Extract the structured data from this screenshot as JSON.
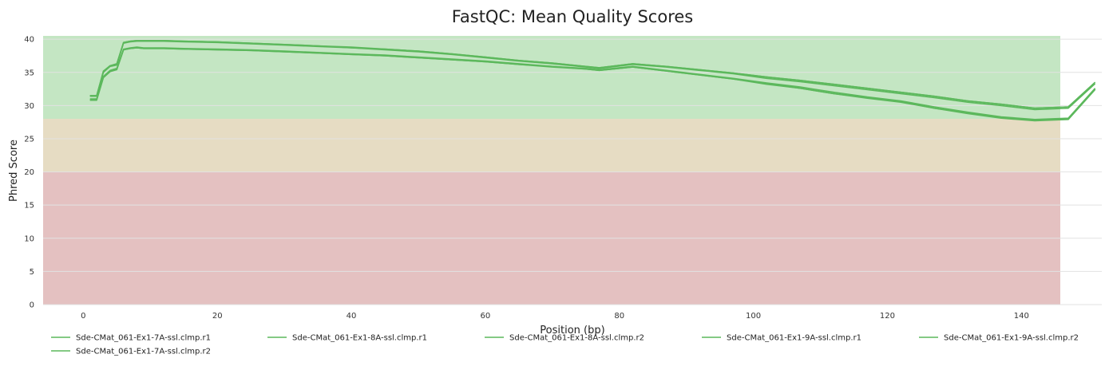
{
  "chart_data": {
    "type": "line",
    "title": "FastQC: Mean Quality Scores",
    "xlabel": "Position (bp)",
    "ylabel": "Phred Score",
    "xlim": [
      -6,
      152
    ],
    "ylim": [
      0,
      40.5
    ],
    "xticks": [
      0,
      20,
      40,
      60,
      80,
      100,
      120,
      140
    ],
    "yticks": [
      0,
      5,
      10,
      15,
      20,
      25,
      30,
      35,
      40
    ],
    "grid": true,
    "legend_position": "bottom",
    "line_color": "#5cb85c",
    "bands": [
      {
        "from": 28,
        "to": 40.5,
        "color": "#c4e6c3"
      },
      {
        "from": 20,
        "to": 28,
        "color": "#e6dcc3"
      },
      {
        "from": 0,
        "to": 20,
        "color": "#e4c1c1"
      }
    ],
    "x": [
      1,
      2,
      3,
      4,
      5,
      6,
      7,
      8,
      9,
      10,
      12,
      15,
      20,
      25,
      30,
      35,
      40,
      45,
      50,
      55,
      60,
      65,
      70,
      75,
      77,
      82,
      87,
      92,
      97,
      102,
      107,
      112,
      117,
      122,
      127,
      132,
      137,
      142,
      147,
      151
    ],
    "series": [
      {
        "name": "Sde-CMat_061-Ex1-7A-ssl.clmp.r1",
        "values": [
          31.5,
          31.5,
          35.2,
          36.0,
          36.3,
          39.5,
          39.7,
          39.8,
          39.8,
          39.8,
          39.8,
          39.7,
          39.6,
          39.4,
          39.2,
          39.0,
          38.8,
          38.5,
          38.2,
          37.8,
          37.3,
          36.8,
          36.4,
          35.9,
          35.7,
          36.3,
          35.9,
          35.4,
          34.9,
          34.3,
          33.8,
          33.2,
          32.6,
          32.0,
          31.4,
          30.7,
          30.2,
          29.6,
          29.8,
          33.5
        ]
      },
      {
        "name": "Sde-CMat_061-Ex1-7A-ssl.clmp.r2",
        "values": [
          30.9,
          30.9,
          34.3,
          35.2,
          35.5,
          38.4,
          38.6,
          38.7,
          38.6,
          38.6,
          38.6,
          38.5,
          38.4,
          38.3,
          38.1,
          37.9,
          37.7,
          37.5,
          37.2,
          36.9,
          36.6,
          36.2,
          35.9,
          35.5,
          35.3,
          35.8,
          35.2,
          34.6,
          34.0,
          33.3,
          32.6,
          31.8,
          31.2,
          30.6,
          29.6,
          28.9,
          28.2,
          27.8,
          28.0,
          32.5
        ]
      },
      {
        "name": "Sde-CMat_061-Ex1-8A-ssl.clmp.r1",
        "values": [
          31.4,
          31.4,
          35.0,
          35.9,
          36.1,
          39.4,
          39.6,
          39.7,
          39.7,
          39.7,
          39.7,
          39.6,
          39.5,
          39.3,
          39.1,
          38.9,
          38.7,
          38.4,
          38.1,
          37.7,
          37.2,
          36.7,
          36.3,
          35.8,
          35.6,
          36.2,
          35.8,
          35.3,
          34.8,
          34.1,
          33.6,
          33.0,
          32.4,
          31.8,
          31.2,
          30.5,
          30.0,
          29.4,
          29.6,
          33.3
        ]
      },
      {
        "name": "Sde-CMat_061-Ex1-8A-ssl.clmp.r2",
        "values": [
          31.0,
          31.0,
          34.4,
          35.3,
          35.6,
          38.5,
          38.7,
          38.8,
          38.7,
          38.7,
          38.7,
          38.6,
          38.5,
          38.4,
          38.2,
          38.0,
          37.8,
          37.6,
          37.3,
          37.0,
          36.7,
          36.3,
          35.9,
          35.6,
          35.4,
          35.9,
          35.3,
          34.7,
          34.1,
          33.4,
          32.8,
          32.0,
          31.3,
          30.7,
          29.8,
          29.0,
          28.3,
          27.9,
          28.1,
          32.6
        ]
      },
      {
        "name": "Sde-CMat_061-Ex1-9A-ssl.clmp.r1",
        "values": [
          31.5,
          31.5,
          35.1,
          36.0,
          36.2,
          39.5,
          39.7,
          39.8,
          39.8,
          39.8,
          39.8,
          39.7,
          39.6,
          39.4,
          39.2,
          39.0,
          38.7,
          38.5,
          38.2,
          37.8,
          37.3,
          36.8,
          36.4,
          35.9,
          35.7,
          36.3,
          35.9,
          35.4,
          34.9,
          34.3,
          33.8,
          33.2,
          32.6,
          32.0,
          31.4,
          30.7,
          30.2,
          29.6,
          29.8,
          33.5
        ]
      },
      {
        "name": "Sde-CMat_061-Ex1-9A-ssl.clmp.r2",
        "values": [
          30.8,
          30.8,
          34.2,
          35.1,
          35.4,
          38.4,
          38.6,
          38.7,
          38.6,
          38.6,
          38.6,
          38.5,
          38.4,
          38.3,
          38.1,
          37.9,
          37.7,
          37.5,
          37.2,
          36.9,
          36.6,
          36.2,
          35.8,
          35.5,
          35.3,
          35.8,
          35.2,
          34.6,
          34.0,
          33.2,
          32.6,
          31.8,
          31.1,
          30.5,
          29.6,
          28.8,
          28.1,
          27.7,
          27.9,
          32.4
        ]
      }
    ],
    "legend_order": [
      "Sde-CMat_061-Ex1-7A-ssl.clmp.r1",
      "Sde-CMat_061-Ex1-8A-ssl.clmp.r1",
      "Sde-CMat_061-Ex1-8A-ssl.clmp.r2",
      "Sde-CMat_061-Ex1-9A-ssl.clmp.r1",
      "Sde-CMat_061-Ex1-9A-ssl.clmp.r2",
      "Sde-CMat_061-Ex1-7A-ssl.clmp.r2"
    ]
  }
}
